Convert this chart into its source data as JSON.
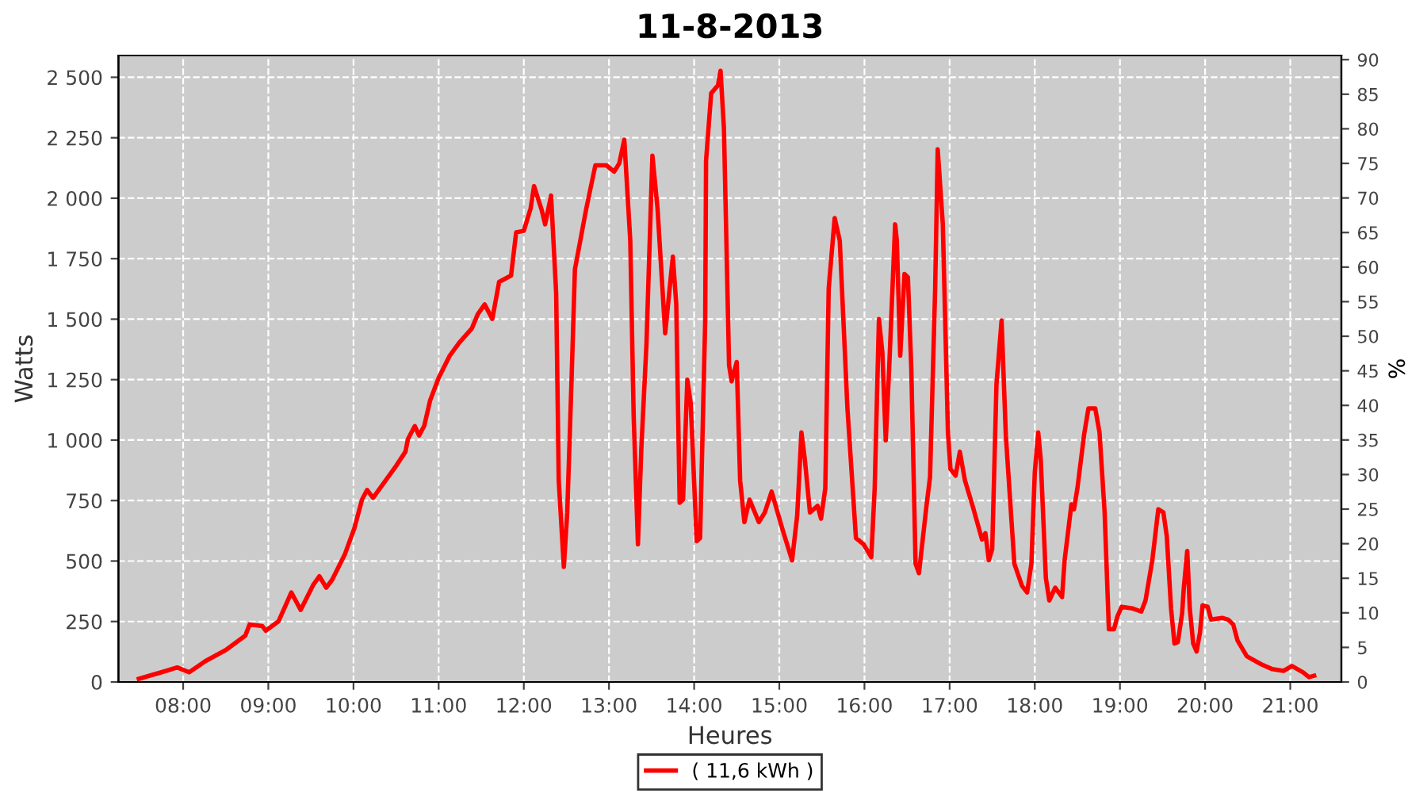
{
  "chart_data": {
    "type": "line",
    "title": "11-8-2013",
    "xlabel": "Heures",
    "ylabel": "Watts",
    "y2label": "%",
    "x": [
      7.48,
      7.8,
      7.93,
      8.07,
      8.26,
      8.5,
      8.73,
      8.78,
      8.93,
      8.97,
      9.12,
      9.27,
      9.38,
      9.53,
      9.6,
      9.68,
      9.75,
      9.9,
      10.01,
      10.1,
      10.16,
      10.23,
      10.31,
      10.5,
      10.61,
      10.64,
      10.72,
      10.77,
      10.83,
      10.9,
      11.0,
      11.13,
      11.24,
      11.39,
      11.46,
      11.54,
      11.63,
      11.71,
      11.85,
      11.91,
      12.0,
      12.08,
      12.12,
      12.21,
      12.25,
      12.32,
      12.38,
      12.41,
      12.47,
      12.51,
      12.56,
      12.6,
      12.73,
      12.84,
      12.97,
      13.06,
      13.12,
      13.18,
      13.25,
      13.29,
      13.34,
      13.38,
      13.44,
      13.51,
      13.57,
      13.66,
      13.75,
      13.79,
      13.83,
      13.87,
      13.92,
      13.96,
      14.03,
      14.07,
      14.13,
      14.14,
      14.2,
      14.28,
      14.31,
      14.35,
      14.41,
      14.44,
      14.5,
      14.54,
      14.59,
      14.65,
      14.76,
      14.83,
      14.91,
      15.04,
      15.15,
      15.21,
      15.26,
      15.3,
      15.36,
      15.45,
      15.49,
      15.54,
      15.58,
      15.65,
      15.71,
      15.8,
      15.9,
      15.99,
      16.08,
      16.12,
      16.17,
      16.21,
      16.25,
      16.29,
      16.36,
      16.38,
      16.42,
      16.47,
      16.51,
      16.55,
      16.6,
      16.64,
      16.73,
      16.77,
      16.83,
      16.86,
      16.92,
      16.98,
      17.01,
      17.07,
      17.12,
      17.18,
      17.27,
      17.38,
      17.42,
      17.46,
      17.5,
      17.55,
      17.61,
      17.66,
      17.76,
      17.85,
      17.91,
      17.96,
      18.0,
      18.04,
      18.07,
      18.13,
      18.17,
      18.24,
      18.32,
      18.35,
      18.43,
      18.46,
      18.5,
      18.58,
      18.63,
      18.71,
      18.76,
      18.82,
      18.87,
      18.93,
      18.97,
      19.02,
      19.15,
      19.25,
      19.3,
      19.38,
      19.45,
      19.51,
      19.55,
      19.6,
      19.64,
      19.68,
      19.73,
      19.75,
      19.79,
      19.82,
      19.86,
      19.9,
      19.94,
      19.97,
      20.03,
      20.07,
      20.2,
      20.27,
      20.33,
      20.38,
      20.49,
      20.66,
      20.79,
      20.92,
      21.02,
      21.15,
      21.22,
      21.28
    ],
    "series": [
      {
        "name": "( 11,6 kWh )",
        "color": "#ff0000",
        "values": [
          13,
          46,
          60,
          40,
          86,
          132,
          192,
          238,
          231,
          212,
          251,
          370,
          298,
          403,
          437,
          390,
          423,
          529,
          635,
          754,
          794,
          761,
          800,
          893,
          952,
          1005,
          1058,
          1019,
          1058,
          1164,
          1257,
          1349,
          1402,
          1462,
          1521,
          1561,
          1501,
          1654,
          1680,
          1859,
          1865,
          1958,
          2050,
          1951,
          1892,
          2011,
          1607,
          833,
          476,
          701,
          1243,
          1706,
          1951,
          2136,
          2136,
          2110,
          2143,
          2242,
          1825,
          1098,
          569,
          966,
          1396,
          2176,
          1958,
          1442,
          1759,
          1561,
          741,
          754,
          1250,
          1151,
          582,
          595,
          1495,
          2156,
          2434,
          2467,
          2527,
          2288,
          1310,
          1243,
          1323,
          833,
          661,
          754,
          661,
          701,
          787,
          628,
          503,
          688,
          1032,
          919,
          701,
          728,
          675,
          800,
          1627,
          1918,
          1825,
          1131,
          595,
          569,
          516,
          800,
          1501,
          1362,
          999,
          1296,
          1892,
          1825,
          1349,
          1687,
          1673,
          1296,
          489,
          450,
          734,
          847,
          1627,
          2202,
          1892,
          1032,
          880,
          853,
          952,
          833,
          728,
          589,
          615,
          503,
          549,
          1230,
          1495,
          1019,
          489,
          397,
          370,
          489,
          866,
          1032,
          919,
          430,
          337,
          390,
          351,
          503,
          734,
          714,
          800,
          1025,
          1131,
          1131,
          1032,
          701,
          218,
          218,
          271,
          311,
          304,
          291,
          337,
          503,
          714,
          701,
          602,
          304,
          159,
          165,
          284,
          390,
          542,
          304,
          159,
          126,
          205,
          317,
          311,
          258,
          265,
          258,
          238,
          172,
          106,
          73,
          53,
          46,
          66,
          40,
          20,
          26
        ]
      }
    ],
    "xlim": [
      7.24,
      21.6
    ],
    "xticks": [
      {
        "value": 8,
        "label": "08:00"
      },
      {
        "value": 9,
        "label": "09:00"
      },
      {
        "value": 10,
        "label": "10:00"
      },
      {
        "value": 11,
        "label": "11:00"
      },
      {
        "value": 12,
        "label": "12:00"
      },
      {
        "value": 13,
        "label": "13:00"
      },
      {
        "value": 14,
        "label": "14:00"
      },
      {
        "value": 15,
        "label": "15:00"
      },
      {
        "value": 16,
        "label": "16:00"
      },
      {
        "value": 17,
        "label": "17:00"
      },
      {
        "value": 18,
        "label": "18:00"
      },
      {
        "value": 19,
        "label": "19:00"
      },
      {
        "value": 20,
        "label": "20:00"
      },
      {
        "value": 21,
        "label": "21:00"
      }
    ],
    "ylim": [
      0,
      2590
    ],
    "yticks": [
      0,
      250,
      500,
      750,
      {
        "value": 1000,
        "label": "1 000"
      },
      {
        "value": 1250,
        "label": "1 250"
      },
      {
        "value": 1500,
        "label": "1 500"
      },
      {
        "value": 1750,
        "label": "1 750"
      },
      {
        "value": 2000,
        "label": "2 000"
      },
      {
        "value": 2250,
        "label": "2 250"
      },
      {
        "value": 2500,
        "label": "2 500"
      }
    ],
    "y2lim": [
      0,
      90.6
    ],
    "y2ticks": [
      0,
      5,
      10,
      15,
      20,
      25,
      30,
      35,
      40,
      45,
      50,
      55,
      60,
      65,
      70,
      75,
      80,
      85,
      90
    ],
    "grid": true,
    "legend": "bottom",
    "marker": "none",
    "line_style": "solid"
  }
}
